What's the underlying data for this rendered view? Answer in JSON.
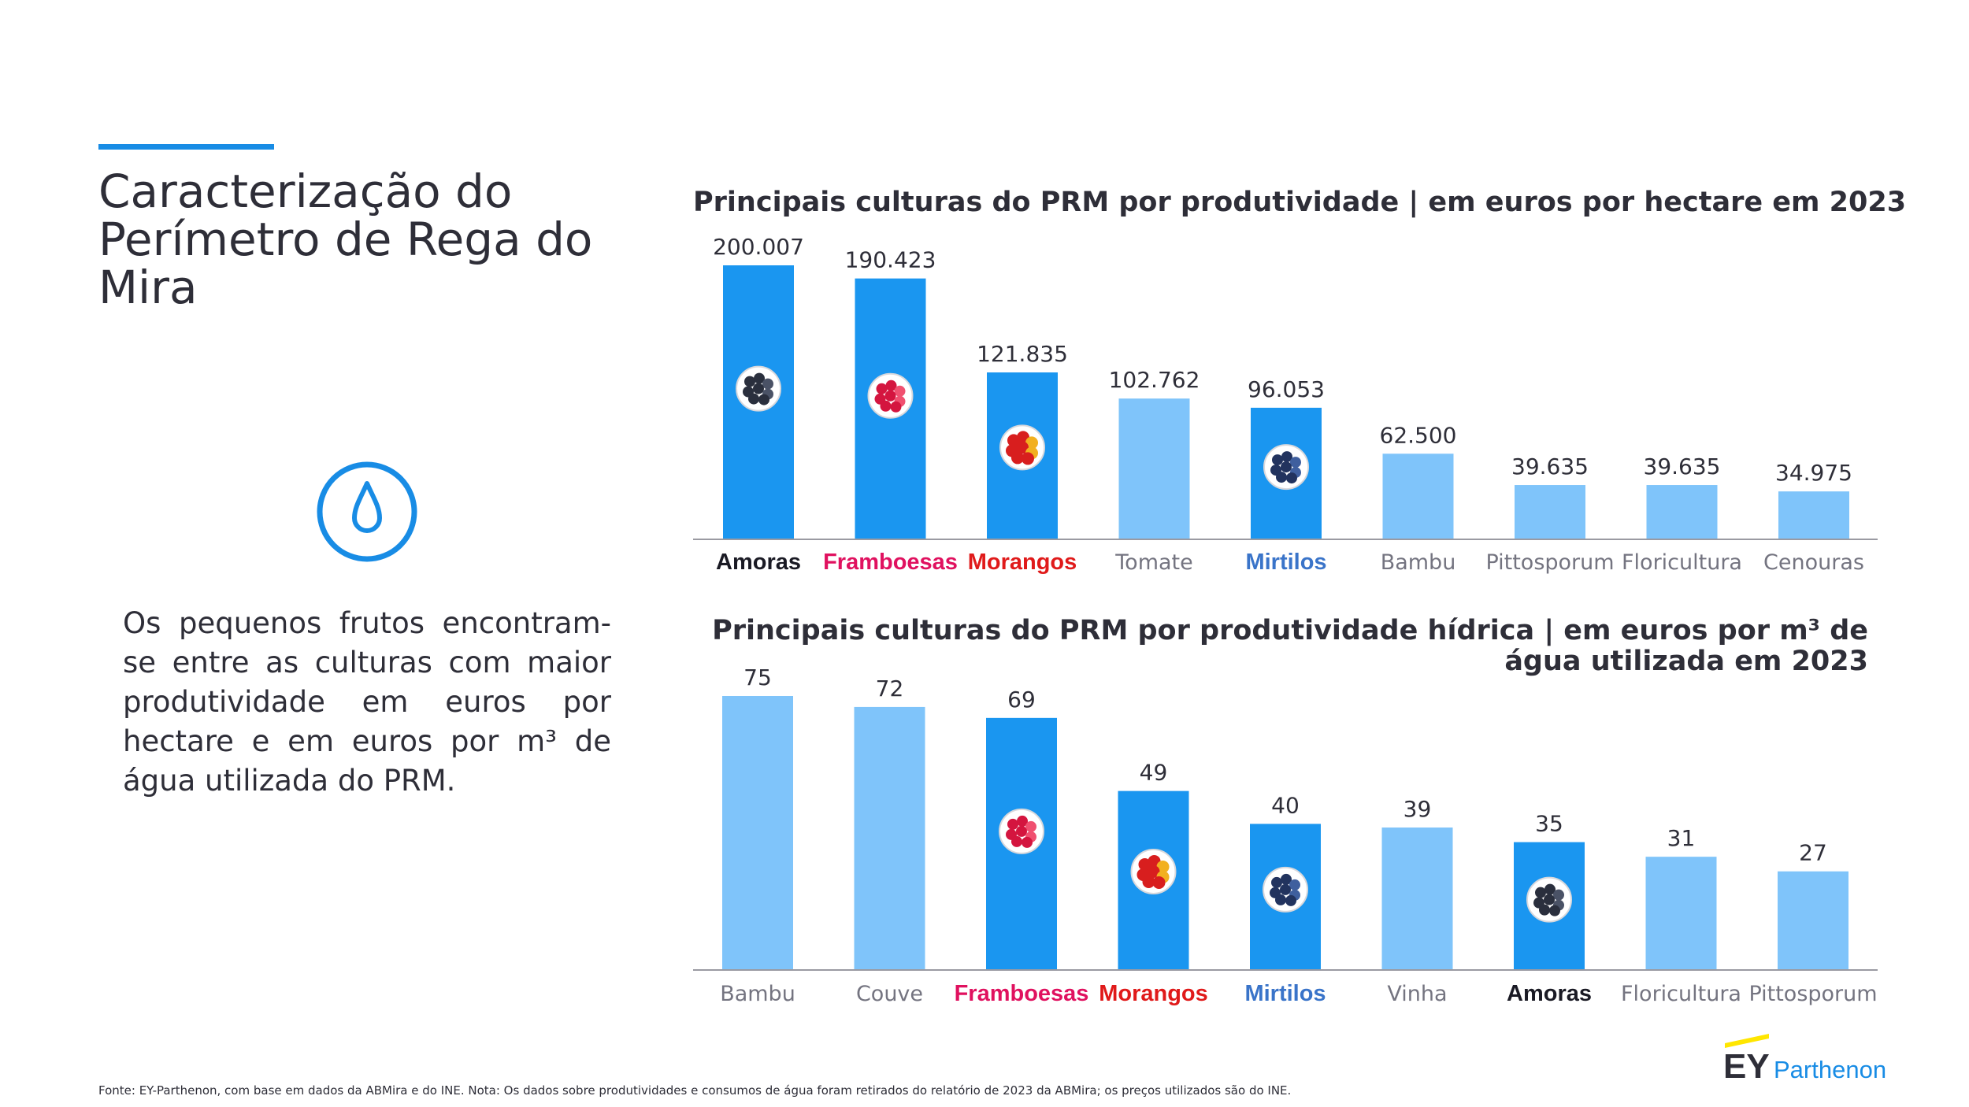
{
  "page": {
    "title": "Caracterização do Perímetro de Rega do Mira",
    "summary": "Os pequenos frutos encontram-se entre as culturas com maior produtividade em euros por hectare e em euros por m³ de água utilizada do PRM.",
    "source_note": "Fonte: EY-Parthenon, com base em dados da ABMira e do INE. Nota: Os dados sobre produtividades e consumos de água foram retirados do relatório de 2023 da ABMira; os preços utilizados são do INE.",
    "logo": {
      "mark": "EY",
      "name": "Parthenon"
    }
  },
  "colors": {
    "highlight_bar": "#1a96f0",
    "other_bar": "#7fc4fa",
    "amoras": "#1a1a24",
    "framboesas": "#e0115f",
    "morangos": "#e01a1a",
    "mirtilos": "#3a74c9",
    "plain_label": "#747480",
    "accent": "#188ce5",
    "logo_yellow": "#ffe600"
  },
  "chart_data": [
    {
      "type": "bar",
      "title_bold": "Principais culturas do PRM por produtividade |",
      "title_rest": " em euros por hectare em 2023",
      "categories": [
        "Amoras",
        "Framboesas",
        "Morangos",
        "Tomate",
        "Mirtilos",
        "Bambu",
        "Pittosporum",
        "Floricultura",
        "Cenouras"
      ],
      "values": [
        200007,
        190423,
        121835,
        102762,
        96053,
        62500,
        39635,
        39635,
        34975
      ],
      "value_labels": [
        "200.007",
        "190.423",
        "121.835",
        "102.762",
        "96.053",
        "62.500",
        "39.635",
        "39.635",
        "34.975"
      ],
      "highlight": [
        "amoras",
        "framboesas",
        "morangos",
        null,
        "mirtilos",
        null,
        null,
        null,
        null
      ],
      "icons": [
        "blackberry-icon",
        "raspberry-icon",
        "strawberry-icon",
        null,
        "blueberry-icon",
        null,
        null,
        null,
        null
      ],
      "ylim": [
        0,
        200007
      ],
      "grid": false
    },
    {
      "type": "bar",
      "title_bold": "Principais culturas do PRM por produtividade hídrica |",
      "title_rest": " em euros por m³ de água utilizada em 2023",
      "categories": [
        "Bambu",
        "Couve",
        "Framboesas",
        "Morangos",
        "Mirtilos",
        "Vinha",
        "Amoras",
        "Floricultura",
        "Pittosporum"
      ],
      "values": [
        75,
        72,
        69,
        49,
        40,
        39,
        35,
        31,
        27
      ],
      "value_labels": [
        "75",
        "72",
        "69",
        "49",
        "40",
        "39",
        "35",
        "31",
        "27"
      ],
      "highlight": [
        null,
        null,
        "framboesas",
        "morangos",
        "mirtilos",
        null,
        "amoras",
        null,
        null
      ],
      "icons": [
        null,
        null,
        "raspberry-icon",
        "strawberry-icon",
        "blueberry-icon",
        null,
        "blackberry-icon",
        null,
        null
      ],
      "ylim": [
        0,
        75
      ],
      "grid": false
    }
  ]
}
